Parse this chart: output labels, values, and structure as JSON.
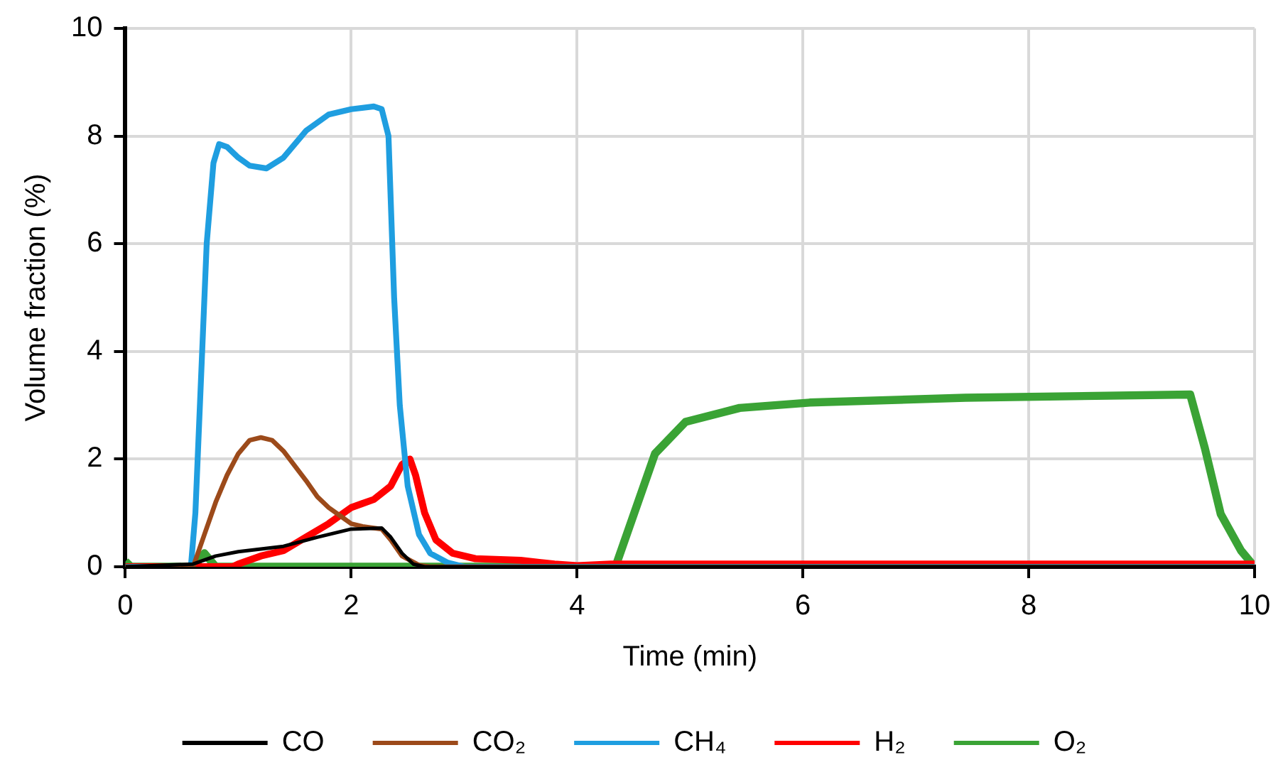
{
  "chart_data": {
    "type": "line",
    "xlabel": "Time (min)",
    "ylabel": "Volume fraction (%)",
    "xlim": [
      0,
      10
    ],
    "xticks": [
      0,
      2,
      4,
      6,
      8,
      10
    ],
    "ylim": [
      0,
      10
    ],
    "yticks": [
      0,
      2,
      4,
      6,
      8,
      10
    ],
    "grid": true,
    "legend": "bottom",
    "series": [
      {
        "name": "CO",
        "color": "#000000",
        "x": [
          0,
          0.6,
          0.8,
          1.0,
          1.4,
          1.7,
          2.0,
          2.27,
          2.35,
          2.45,
          2.55,
          2.65,
          10
        ],
        "values": [
          0,
          0.05,
          0.2,
          0.28,
          0.38,
          0.55,
          0.7,
          0.72,
          0.55,
          0.25,
          0.05,
          0,
          0
        ]
      },
      {
        "name": "CO₂",
        "color": "#9c4a1a",
        "x": [
          0,
          0.6,
          0.7,
          0.8,
          0.9,
          1.0,
          1.1,
          1.2,
          1.3,
          1.4,
          1.6,
          1.7,
          1.8,
          1.9,
          2.0,
          2.1,
          2.27,
          2.35,
          2.45,
          2.6,
          2.7,
          10
        ],
        "values": [
          0,
          0,
          0.6,
          1.2,
          1.7,
          2.1,
          2.35,
          2.4,
          2.35,
          2.15,
          1.6,
          1.3,
          1.1,
          0.95,
          0.8,
          0.75,
          0.7,
          0.5,
          0.2,
          0.03,
          0,
          0
        ]
      },
      {
        "name": "CH₄",
        "color": "#1f9ee0",
        "x": [
          0,
          0.58,
          0.62,
          0.68,
          0.72,
          0.78,
          0.83,
          0.9,
          1.0,
          1.1,
          1.25,
          1.4,
          1.6,
          1.8,
          2.0,
          2.2,
          2.27,
          2.33,
          2.38,
          2.43,
          2.5,
          2.6,
          2.7,
          2.85,
          3.0,
          10
        ],
        "values": [
          0,
          0,
          1.0,
          4.0,
          6.0,
          7.5,
          7.85,
          7.8,
          7.6,
          7.45,
          7.4,
          7.6,
          8.1,
          8.4,
          8.5,
          8.55,
          8.5,
          8.0,
          5.0,
          3.0,
          1.5,
          0.6,
          0.25,
          0.08,
          0,
          0
        ]
      },
      {
        "name": "H₂",
        "color": "#ff0000",
        "x": [
          0,
          0.95,
          1.0,
          1.2,
          1.4,
          1.6,
          1.8,
          2.0,
          2.2,
          2.35,
          2.45,
          2.52,
          2.57,
          2.65,
          2.75,
          2.9,
          3.1,
          3.5,
          3.8,
          4.0,
          4.3,
          10
        ],
        "values": [
          0,
          0,
          0.05,
          0.2,
          0.3,
          0.55,
          0.8,
          1.1,
          1.25,
          1.5,
          1.9,
          2.0,
          1.7,
          1.0,
          0.5,
          0.25,
          0.15,
          0.12,
          0.05,
          0.02,
          0.05,
          0.05
        ]
      },
      {
        "name": "O₂",
        "color": "#3aa335",
        "x": [
          0,
          0.05,
          0.6,
          0.7,
          0.8,
          4.34,
          4.47,
          4.69,
          4.96,
          5.44,
          6.06,
          7.44,
          9.43,
          9.56,
          9.7,
          9.88,
          10
        ],
        "values": [
          0.1,
          0,
          0,
          0.25,
          0,
          0,
          0.78,
          2.1,
          2.69,
          2.95,
          3.05,
          3.14,
          3.2,
          2.2,
          0.98,
          0.3,
          0
        ]
      }
    ]
  }
}
